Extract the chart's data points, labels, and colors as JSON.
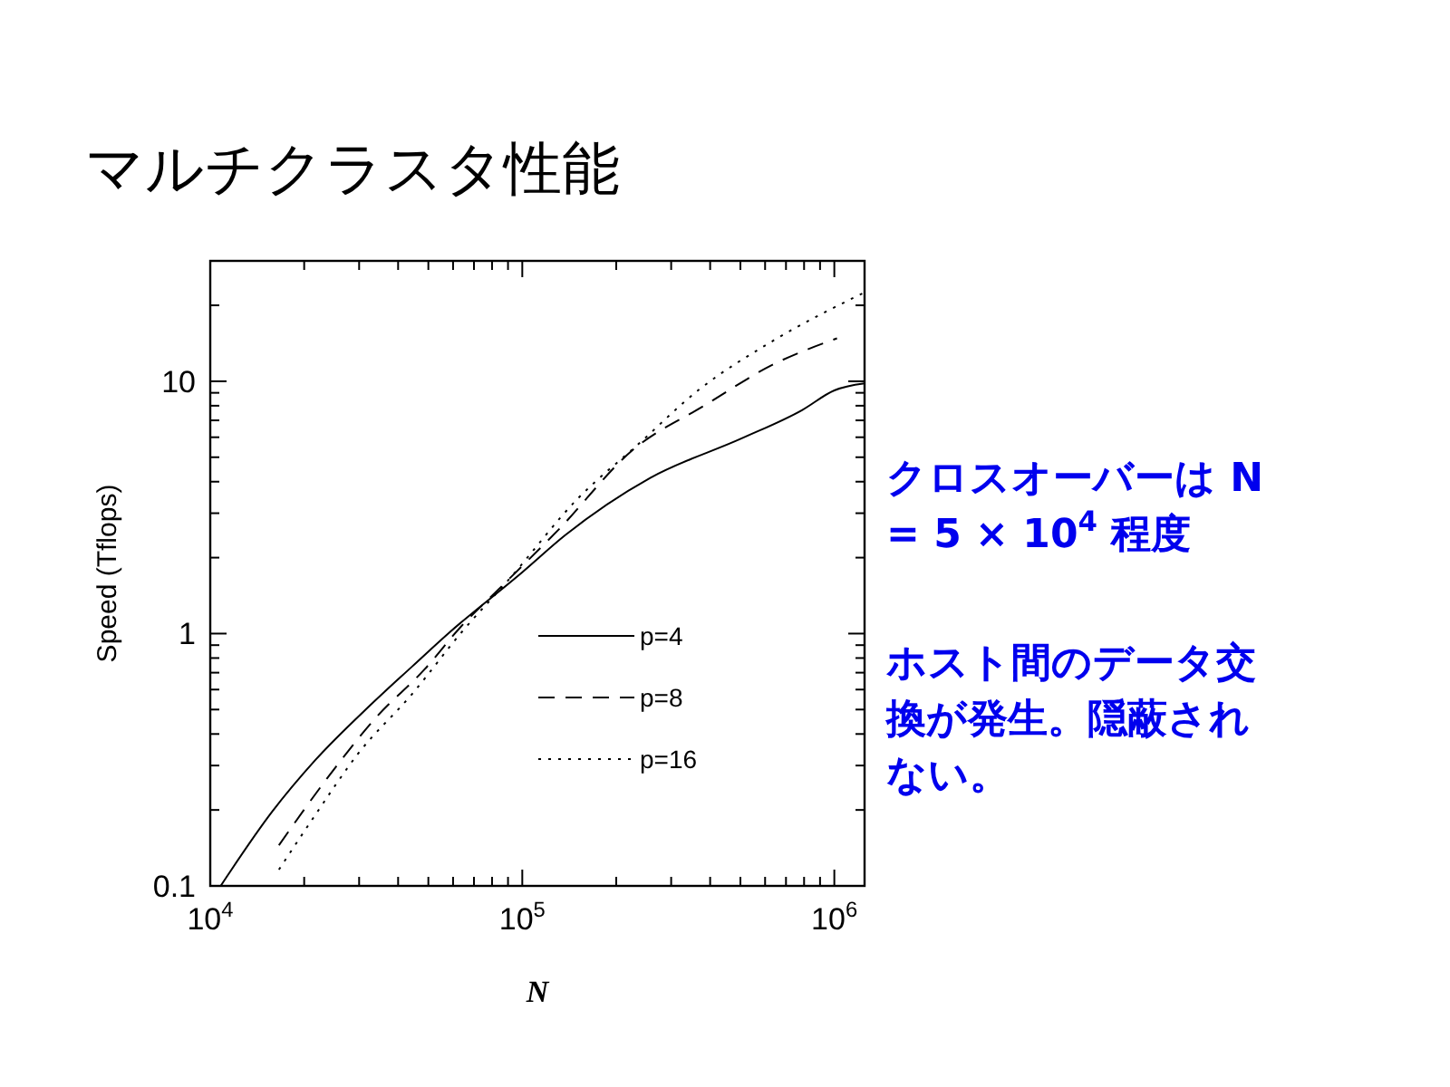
{
  "chart_data": {
    "type": "line",
    "title": "マルチクラスタ性能",
    "xlabel": "N",
    "ylabel": "Speed (Tflops)",
    "log": "xy",
    "grid": false,
    "legend": "right",
    "marker": "none",
    "xlim": [
      10000,
      1250000
    ],
    "ylim": [
      0.1,
      30
    ],
    "xticks": [
      {
        "value": 10000,
        "label": "10$^{4}$"
      },
      {
        "value": 20000,
        "label": null
      },
      {
        "value": 30000,
        "label": null
      },
      {
        "value": 40000,
        "label": null
      },
      {
        "value": 50000,
        "label": null
      },
      {
        "value": 60000,
        "label": null
      },
      {
        "value": 70000,
        "label": null
      },
      {
        "value": 80000,
        "label": null
      },
      {
        "value": 90000,
        "label": null
      },
      {
        "value": 100000,
        "label": "10$^{5}$"
      },
      {
        "value": 200000,
        "label": null
      },
      {
        "value": 300000,
        "label": null
      },
      {
        "value": 400000,
        "label": null
      },
      {
        "value": 500000,
        "label": null
      },
      {
        "value": 600000,
        "label": null
      },
      {
        "value": 700000,
        "label": null
      },
      {
        "value": 800000,
        "label": null
      },
      {
        "value": 900000,
        "label": null
      },
      {
        "value": 1000000,
        "label": "10$^{6}$"
      }
    ],
    "yticks": [
      {
        "value": 0.1,
        "label": "0.1"
      },
      {
        "value": 0.2,
        "label": null
      },
      {
        "value": 0.3,
        "label": null
      },
      {
        "value": 0.4,
        "label": null
      },
      {
        "value": 0.5,
        "label": null
      },
      {
        "value": 0.6,
        "label": null
      },
      {
        "value": 0.7,
        "label": null
      },
      {
        "value": 0.8,
        "label": null
      },
      {
        "value": 0.9,
        "label": null
      },
      {
        "value": 1,
        "label": "1"
      },
      {
        "value": 2,
        "label": null
      },
      {
        "value": 3,
        "label": null
      },
      {
        "value": 4,
        "label": null
      },
      {
        "value": 5,
        "label": null
      },
      {
        "value": 6,
        "label": null
      },
      {
        "value": 7,
        "label": null
      },
      {
        "value": 8,
        "label": null
      },
      {
        "value": 9,
        "label": null
      },
      {
        "value": 10,
        "label": "10"
      },
      {
        "value": 20,
        "label": null
      },
      {
        "value": 30,
        "label": null
      }
    ],
    "series": [
      {
        "name": "p=4",
        "color": "#000000",
        "line_style": "solid",
        "x": [
          10800,
          15800,
          21700,
          32500,
          44500,
          58400,
          100000,
          137000,
          257000,
          505000,
          790000,
          1000000,
          1250000
        ],
        "values": [
          0.1,
          0.197,
          0.315,
          0.519,
          0.743,
          1.01,
          1.75,
          2.45,
          4.14,
          5.94,
          7.7,
          9.2,
          9.8
        ]
      },
      {
        "name": "p=8",
        "color": "#000000",
        "line_style": "dashed",
        "x": [
          16600,
          23700,
          34000,
          48700,
          63800,
          83600,
          131000,
          225000,
          386000,
          632000,
          1020000
        ],
        "values": [
          0.145,
          0.267,
          0.465,
          0.723,
          1.07,
          1.49,
          2.59,
          5.32,
          8.05,
          11.6,
          14.8
        ]
      },
      {
        "name": "p=16",
        "color": "#000000",
        "line_style": "dotted",
        "x": [
          16600,
          21700,
          29700,
          44500,
          63800,
          91400,
          150000,
          235000,
          368000,
          632000,
          1240000
        ],
        "values": [
          0.116,
          0.191,
          0.333,
          0.579,
          1.01,
          1.66,
          3.41,
          5.62,
          9.25,
          14.4,
          22.4
        ]
      }
    ],
    "annotations": [
      "クロスオーバーは N = 5 × 10$^{4}$ 程度",
      "ホスト間のデータ交換が発生。隠蔽されない。"
    ]
  }
}
